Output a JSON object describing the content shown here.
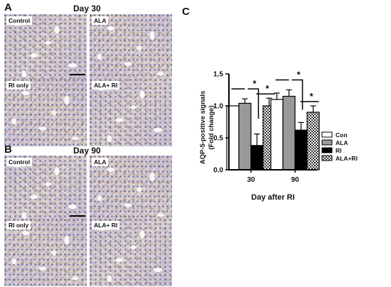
{
  "panels": {
    "a": {
      "letter": "A",
      "day": "Day 30",
      "images": [
        {
          "label": "Control"
        },
        {
          "label": "ALA"
        },
        {
          "label": "RI only"
        },
        {
          "label": "ALA+ RI"
        }
      ]
    },
    "b": {
      "letter": "B",
      "day": "Day 90",
      "images": [
        {
          "label": "Control"
        },
        {
          "label": "ALA"
        },
        {
          "label": "RI only"
        },
        {
          "label": "ALA+ RI"
        }
      ]
    },
    "c": {
      "letter": "C"
    }
  },
  "chart_data": {
    "type": "bar",
    "categories": [
      "30",
      "90"
    ],
    "series": [
      {
        "name": "Con",
        "values": [
          1.0,
          1.1
        ],
        "errors": [
          0.0,
          0.1
        ],
        "fill": "#ffffff"
      },
      {
        "name": "ALA",
        "values": [
          1.04,
          1.15
        ],
        "errors": [
          0.07,
          0.1
        ],
        "fill": "#999999"
      },
      {
        "name": "RI",
        "values": [
          0.38,
          0.62
        ],
        "errors": [
          0.18,
          0.12
        ],
        "fill": "#000000"
      },
      {
        "name": "ALA+RI",
        "values": [
          1.0,
          0.9
        ],
        "errors": [
          0.12,
          0.1
        ],
        "fill": "checker"
      }
    ],
    "significance": [
      "*",
      "*",
      "*",
      "*"
    ],
    "xlabel": "Day after RI",
    "ylabel_line1": "AQP-5-positive signals",
    "ylabel_line2": "(Fold change)",
    "ylim": [
      0,
      1.5
    ],
    "yticks": [
      "0.0",
      "0.5",
      "1.0",
      "1.5"
    ],
    "legend_position": "right"
  }
}
